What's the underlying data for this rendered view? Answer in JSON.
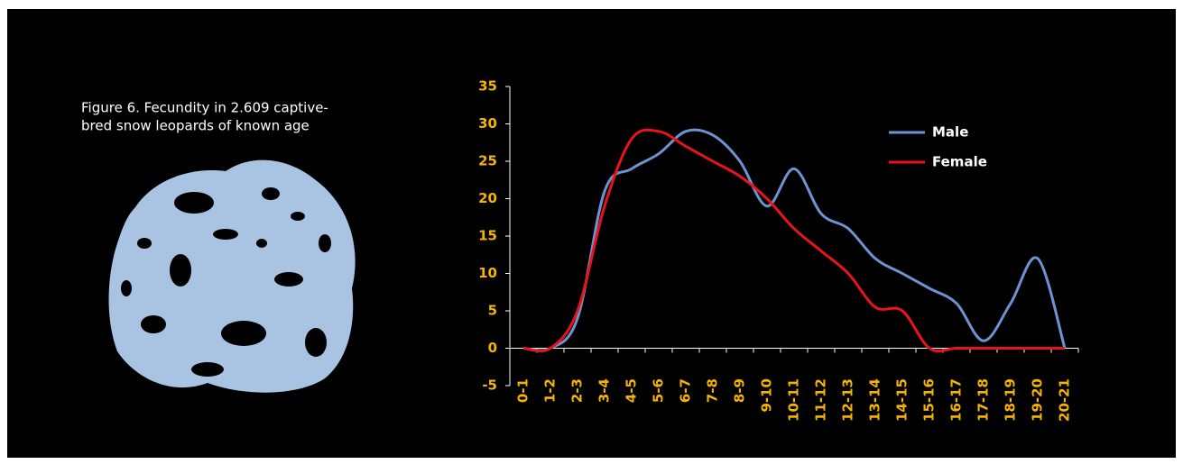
{
  "chart_data": {
    "type": "line",
    "title": [
      "Figure 6. Fecundity in 2.609 captive-",
      "bred snow leopards of known age"
    ],
    "categories": [
      "0-1",
      "1-2",
      "2-3",
      "3-4",
      "4-5",
      "5-6",
      "6-7",
      "7-8",
      "8-9",
      "9-10",
      "10-11",
      "11-12",
      "12-13",
      "13-14",
      "14-15",
      "15-16",
      "16-17",
      "17-18",
      "18-19",
      "19-20",
      "20-21"
    ],
    "series": [
      {
        "name": "Male",
        "color": "#6f93d2",
        "values": [
          0,
          0,
          4,
          21,
          24,
          26,
          29,
          28.5,
          25,
          19,
          24,
          18,
          16,
          12,
          10,
          8,
          6,
          1,
          6,
          12,
          0
        ]
      },
      {
        "name": "Female",
        "color": "#e8131b",
        "values": [
          0,
          0,
          5,
          19,
          28,
          29,
          27,
          25,
          23,
          20,
          16,
          13,
          10,
          5.5,
          5,
          0,
          0,
          0,
          0,
          0,
          0
        ]
      }
    ],
    "ylim": [
      -5,
      35
    ],
    "yticks": [
      -5,
      0,
      5,
      10,
      15,
      20,
      25,
      30,
      35
    ],
    "legend": "top-right",
    "tick_color": "#f5b400",
    "smooth": true
  }
}
